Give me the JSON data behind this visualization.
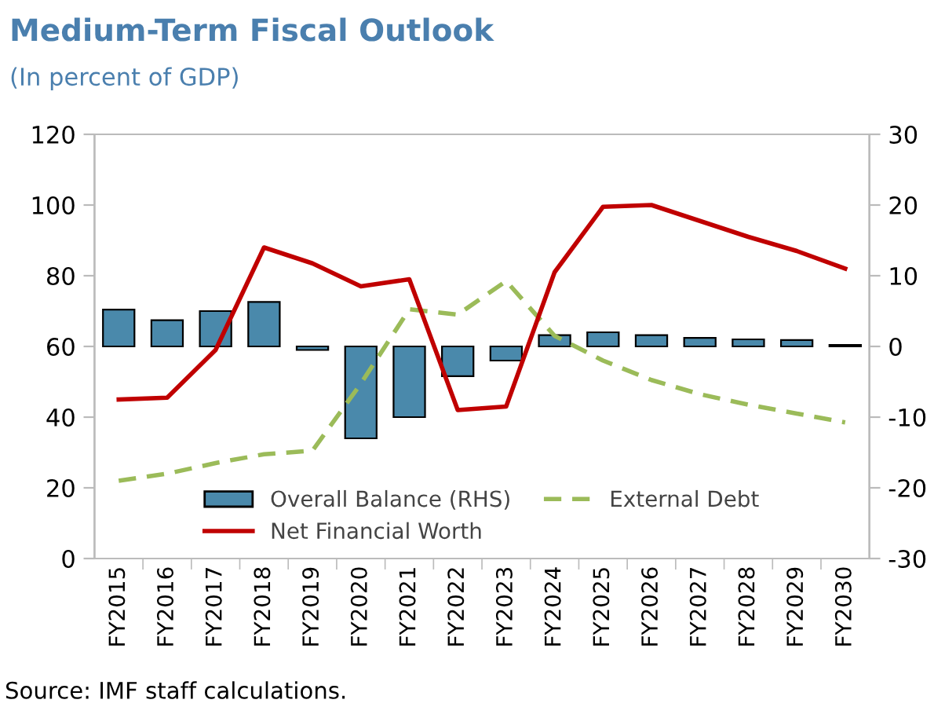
{
  "chart_data": {
    "type": "bar",
    "title": "Medium-Term Fiscal Outlook",
    "subtitle": "(In percent of GDP)",
    "categories": [
      "FY2015",
      "FY2016",
      "FY2017",
      "FY2018",
      "FY2019",
      "FY2020",
      "FY2021",
      "FY2022",
      "FY2023",
      "FY2024",
      "FY2025",
      "FY2026",
      "FY2027",
      "FY2028",
      "FY2029",
      "FY2030"
    ],
    "series": [
      {
        "name": "Overall Balance (RHS)",
        "axis": "y2",
        "color": "#4a89ab",
        "values": [
          5.2,
          3.7,
          5.0,
          6.3,
          -0.5,
          -13,
          -10,
          -4.2,
          -2,
          1.6,
          2.0,
          1.6,
          1.2,
          1.0,
          0.9,
          0.2
        ]
      },
      {
        "name": "External Debt",
        "type": "line",
        "line_style": "dashed",
        "color": "#9bbb59",
        "values": [
          22,
          24,
          27,
          29.5,
          30.5,
          49.5,
          70.5,
          69,
          78.5,
          63,
          56,
          50.5,
          46.5,
          43.5,
          41,
          38.5
        ]
      },
      {
        "name": "Net Financial Worth",
        "type": "line",
        "line_style": "solid",
        "color": "#c00000",
        "values": [
          45,
          45.5,
          59,
          88,
          83.5,
          77,
          79,
          42,
          43,
          81,
          99.5,
          100,
          95.5,
          91,
          87,
          82
        ]
      }
    ],
    "ylim": [
      0,
      120
    ],
    "yticks": [
      0,
      20,
      40,
      60,
      80,
      100,
      120
    ],
    "y2lim": [
      -30,
      30
    ],
    "y2ticks": [
      -30,
      -20,
      -10,
      0,
      10,
      20,
      30
    ],
    "grid": false,
    "legend": "bottom",
    "annotations": [
      "Source: IMF staff calculations."
    ]
  }
}
